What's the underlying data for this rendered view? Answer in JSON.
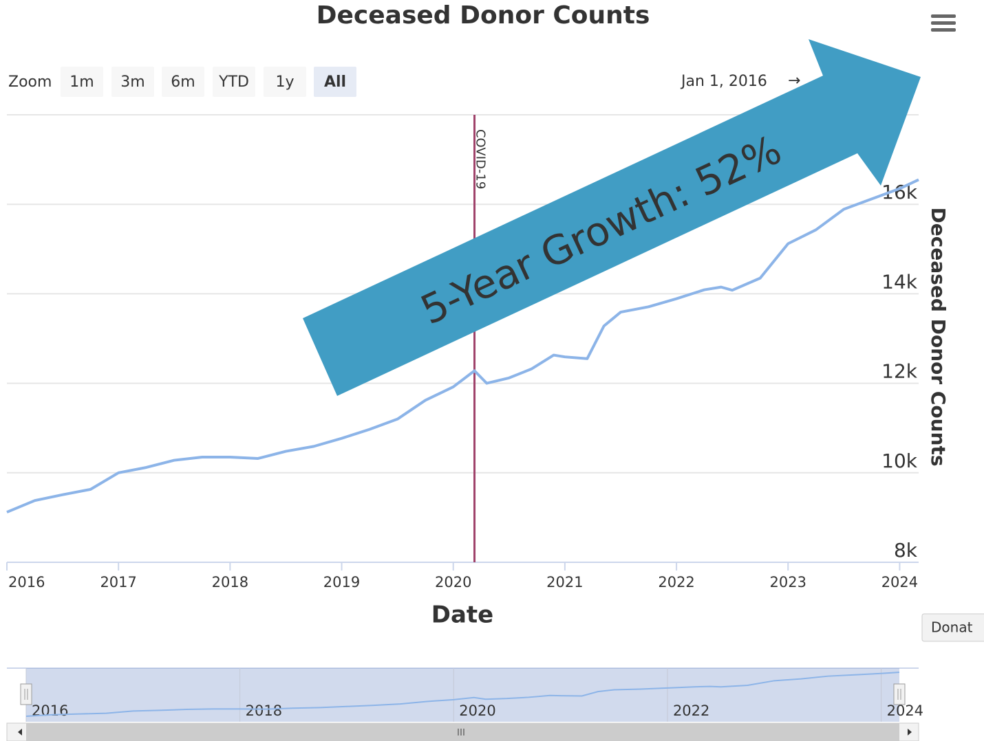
{
  "chart_data": {
    "type": "line",
    "title": "Deceased Donor Counts",
    "x_label": "Date",
    "y_label": "Deceased Donor Counts",
    "x": [
      2016.0,
      2016.25,
      2016.5,
      2016.75,
      2017.0,
      2017.25,
      2017.5,
      2017.75,
      2018.0,
      2018.25,
      2018.5,
      2018.75,
      2019.0,
      2019.25,
      2019.5,
      2019.75,
      2020.0,
      2020.19,
      2020.3,
      2020.5,
      2020.7,
      2020.9,
      2021.0,
      2021.2,
      2021.35,
      2021.5,
      2021.75,
      2022.0,
      2022.25,
      2022.4,
      2022.5,
      2022.75,
      2023.0,
      2023.25,
      2023.5,
      2023.75,
      2024.0,
      2024.17
    ],
    "values": [
      9120,
      9380,
      9510,
      9630,
      10000,
      10120,
      10280,
      10350,
      10350,
      10320,
      10480,
      10590,
      10770,
      10970,
      11200,
      11620,
      11920,
      12280,
      12000,
      12120,
      12320,
      12630,
      12590,
      12550,
      13280,
      13590,
      13710,
      13890,
      14090,
      14150,
      14080,
      14350,
      15120,
      15430,
      15890,
      16120,
      16350,
      16550
    ],
    "color": "#8cb4e8",
    "xlim": [
      2016,
      2024.17
    ],
    "xticks": [
      2016,
      2017,
      2018,
      2019,
      2020,
      2021,
      2022,
      2023,
      2024
    ],
    "ylim": [
      8000,
      18000
    ],
    "yticks": [
      {
        "value": 8000,
        "label": "8k"
      },
      {
        "value": 10000,
        "label": "10k"
      },
      {
        "value": 12000,
        "label": "12k"
      },
      {
        "value": 14000,
        "label": "14k"
      },
      {
        "value": 16000,
        "label": "16k"
      },
      18000
    ],
    "grid": true,
    "plot_lines": [
      {
        "value": 2020.19,
        "label": "COVID-19",
        "color": "#a0426a"
      }
    ],
    "annotations": [
      {
        "text": "5-Year Growth: 52%",
        "color": "#419dc4"
      }
    ],
    "range_selector": {
      "label": "Zoom",
      "buttons": [
        "1m",
        "3m",
        "6m",
        "YTD",
        "1y",
        "All"
      ],
      "selected": 5
    },
    "date_range": {
      "from": "Jan 1, 2016",
      "separator": "→"
    },
    "navigator": {
      "ticks": [
        2016,
        2018,
        2020,
        2022,
        2024
      ]
    },
    "side_button": "Donat"
  }
}
